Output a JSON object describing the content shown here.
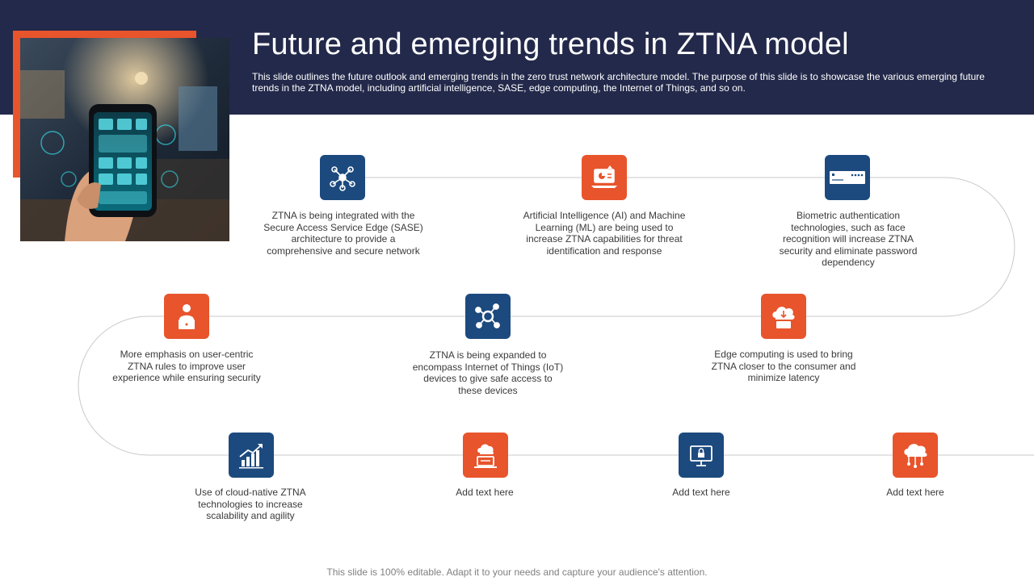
{
  "header": {
    "title": "Future and emerging trends in ZTNA model",
    "subtitle": "This slide outlines the future outlook and emerging trends in the zero trust network architecture model. The purpose of this slide is to showcase the various emerging future trends in the ZTNA model, including artificial intelligence, SASE, edge computing, the Internet of Things, and so on."
  },
  "items": [
    {
      "text": "ZTNA is being integrated with the Secure Access Service Edge (SASE) architecture to provide a comprehensive and secure network",
      "icon": "network-users-icon"
    },
    {
      "text": "Artificial Intelligence (AI) and Machine Learning (ML) are being used to increase ZTNA capabilities for threat identification and response",
      "icon": "laptop-chart-icon"
    },
    {
      "text": "Biometric authentication technologies, such as face recognition will increase ZTNA security and eliminate password dependency",
      "icon": "password-field-icon"
    },
    {
      "text": "More emphasis on user-centric ZTNA rules to improve user experience while ensuring security",
      "icon": "user-laptop-icon"
    },
    {
      "text": "ZTNA is being expanded to encompass Internet of Things (IoT) devices to give safe access to these devices",
      "icon": "iot-hub-icon"
    },
    {
      "text": "Edge computing is used to bring ZTNA closer to the consumer and minimize latency",
      "icon": "edge-cloud-icon"
    },
    {
      "text": "Use of cloud-native ZTNA technologies to increase scalability and agility",
      "icon": "growth-chart-icon"
    },
    {
      "text": "Add text here",
      "icon": "cloud-laptop-icon"
    },
    {
      "text": "Add text here",
      "icon": "monitor-lock-icon"
    },
    {
      "text": "Add text here",
      "icon": "cloud-network-icon"
    }
  ],
  "footer": "This slide is 100% editable. Adapt it to your needs and capture your audience's attention."
}
